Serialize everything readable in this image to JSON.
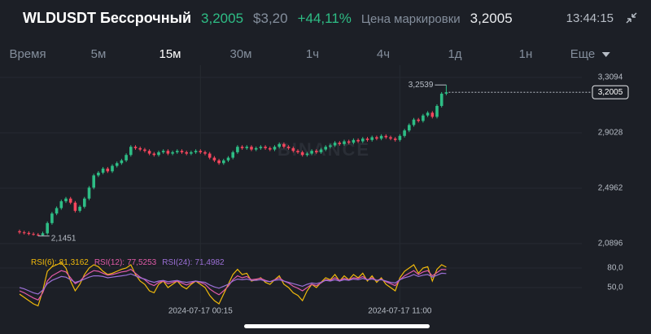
{
  "header": {
    "symbol": "WLDUSDT Бессрочный",
    "price": "3,2005",
    "usd_price": "$3,20",
    "change": "+44,11%",
    "mark_label": "Цена маркировки",
    "mark_price": "3,2005",
    "time": "13:44:15"
  },
  "tabs": [
    "Время",
    "5м",
    "15м",
    "30м",
    "1ч",
    "4ч",
    "1д",
    "1н",
    "Еще"
  ],
  "active_tab": 2,
  "chart_data": [
    {
      "type": "candlestick",
      "watermark": "BINANCE",
      "categories": [
        null,
        null,
        null,
        null,
        null,
        null,
        null,
        null,
        null,
        null,
        null,
        null,
        null,
        null,
        null,
        null,
        null,
        null,
        null,
        null,
        null,
        null,
        null,
        null,
        null,
        null,
        null,
        null,
        null,
        null,
        null,
        null,
        null,
        null,
        null,
        null,
        null,
        null,
        null,
        "2024-07-17 00:15",
        null,
        null,
        null,
        null,
        null,
        null,
        null,
        null,
        null,
        null,
        null,
        null,
        null,
        null,
        null,
        null,
        null,
        null,
        null,
        null,
        null,
        null,
        null,
        null,
        null,
        null,
        null,
        null,
        null,
        null,
        null,
        null,
        null,
        null,
        null,
        null,
        null,
        null,
        null,
        null,
        null,
        null,
        "2024-07-17 11:00",
        null,
        null,
        null,
        null,
        null,
        null,
        null,
        null,
        null,
        null
      ],
      "open": [
        2.18,
        2.172,
        2.168,
        2.16,
        2.155,
        2.15,
        2.165,
        2.24,
        2.31,
        2.35,
        2.4,
        2.42,
        2.39,
        2.33,
        2.36,
        2.42,
        2.5,
        2.59,
        2.61,
        2.64,
        2.62,
        2.66,
        2.68,
        2.7,
        2.74,
        2.8,
        2.79,
        2.78,
        2.77,
        2.75,
        2.74,
        2.76,
        2.77,
        2.75,
        2.76,
        2.77,
        2.76,
        2.75,
        2.76,
        2.77,
        2.76,
        2.75,
        2.72,
        2.7,
        2.68,
        2.7,
        2.72,
        2.76,
        2.8,
        2.79,
        2.8,
        2.78,
        2.79,
        2.8,
        2.79,
        2.78,
        2.8,
        2.82,
        2.8,
        2.79,
        2.77,
        2.76,
        2.74,
        2.75,
        2.77,
        2.76,
        2.78,
        2.8,
        2.81,
        2.83,
        2.82,
        2.84,
        2.83,
        2.85,
        2.84,
        2.86,
        2.85,
        2.87,
        2.86,
        2.88,
        2.87,
        2.86,
        2.85,
        2.88,
        2.92,
        2.96,
        3.0,
        2.99,
        3.03,
        3.05,
        3.02,
        3.1,
        3.19
      ],
      "high": [
        2.192,
        2.184,
        2.18,
        2.172,
        2.167,
        2.177,
        2.252,
        2.322,
        2.362,
        2.412,
        2.432,
        2.432,
        2.402,
        2.372,
        2.432,
        2.512,
        2.602,
        2.622,
        2.652,
        2.652,
        2.672,
        2.692,
        2.712,
        2.752,
        2.812,
        2.812,
        2.802,
        2.792,
        2.782,
        2.762,
        2.772,
        2.782,
        2.782,
        2.772,
        2.782,
        2.782,
        2.772,
        2.772,
        2.782,
        2.782,
        2.772,
        2.762,
        2.732,
        2.712,
        2.712,
        2.732,
        2.772,
        2.812,
        2.812,
        2.812,
        2.812,
        2.802,
        2.812,
        2.812,
        2.802,
        2.812,
        2.832,
        2.832,
        2.812,
        2.802,
        2.782,
        2.772,
        2.762,
        2.782,
        2.782,
        2.792,
        2.812,
        2.822,
        2.842,
        2.842,
        2.852,
        2.852,
        2.862,
        2.862,
        2.872,
        2.872,
        2.882,
        2.882,
        2.892,
        2.892,
        2.882,
        2.872,
        2.892,
        2.932,
        2.972,
        3.012,
        3.012,
        3.042,
        3.062,
        3.062,
        3.112,
        3.202,
        3.2539
      ],
      "low": [
        2.16,
        2.156,
        2.15,
        2.148,
        2.1451,
        2.147,
        2.153,
        2.228,
        2.298,
        2.338,
        2.388,
        2.378,
        2.318,
        2.318,
        2.348,
        2.408,
        2.488,
        2.578,
        2.598,
        2.608,
        2.608,
        2.648,
        2.668,
        2.688,
        2.728,
        2.778,
        2.768,
        2.758,
        2.738,
        2.728,
        2.728,
        2.748,
        2.738,
        2.738,
        2.748,
        2.748,
        2.738,
        2.738,
        2.748,
        2.748,
        2.738,
        2.708,
        2.688,
        2.668,
        2.668,
        2.688,
        2.708,
        2.748,
        2.778,
        2.778,
        2.768,
        2.768,
        2.778,
        2.778,
        2.768,
        2.768,
        2.788,
        2.788,
        2.778,
        2.758,
        2.748,
        2.728,
        2.728,
        2.738,
        2.748,
        2.748,
        2.768,
        2.788,
        2.798,
        2.808,
        2.808,
        2.818,
        2.818,
        2.828,
        2.828,
        2.838,
        2.838,
        2.848,
        2.848,
        2.858,
        2.848,
        2.838,
        2.838,
        2.868,
        2.908,
        2.948,
        2.978,
        2.978,
        3.018,
        3.008,
        3.008,
        3.088,
        3.178
      ],
      "close": [
        2.172,
        2.168,
        2.16,
        2.155,
        2.15,
        2.165,
        2.24,
        2.31,
        2.35,
        2.4,
        2.42,
        2.39,
        2.33,
        2.36,
        2.42,
        2.5,
        2.59,
        2.61,
        2.64,
        2.62,
        2.66,
        2.68,
        2.7,
        2.74,
        2.8,
        2.79,
        2.78,
        2.77,
        2.75,
        2.74,
        2.76,
        2.77,
        2.75,
        2.76,
        2.77,
        2.76,
        2.75,
        2.76,
        2.77,
        2.76,
        2.75,
        2.72,
        2.7,
        2.68,
        2.7,
        2.72,
        2.76,
        2.8,
        2.79,
        2.8,
        2.78,
        2.79,
        2.8,
        2.79,
        2.78,
        2.8,
        2.82,
        2.8,
        2.79,
        2.77,
        2.76,
        2.74,
        2.75,
        2.77,
        2.76,
        2.78,
        2.8,
        2.81,
        2.83,
        2.82,
        2.84,
        2.83,
        2.85,
        2.84,
        2.86,
        2.85,
        2.87,
        2.86,
        2.88,
        2.87,
        2.86,
        2.85,
        2.88,
        2.92,
        2.96,
        3.0,
        2.99,
        3.03,
        3.05,
        3.02,
        3.1,
        3.19,
        3.2005
      ],
      "up_color": "#2ebd85",
      "down_color": "#f6465d",
      "ylim": [
        2.0537,
        3.3513
      ],
      "yticks": [
        {
          "value": 2.0896,
          "label": "2,0896"
        },
        {
          "value": 2.4962,
          "label": "2,4962"
        },
        {
          "value": 2.9028,
          "label": "2,9028"
        },
        {
          "value": 3.3094,
          "label": "3,3094"
        }
      ],
      "last_price": {
        "value": 3.2005,
        "label": "3,2005"
      },
      "max_label": {
        "value": 3.2539,
        "label": "3,2539"
      },
      "min_label": {
        "value": 2.1451,
        "label": "2,1451"
      }
    },
    {
      "type": "line",
      "ylim": [
        18.75,
        93.75
      ],
      "yticks": [
        {
          "value": 50,
          "label": "50,0"
        },
        {
          "value": 80,
          "label": "80,0"
        }
      ],
      "series": [
        {
          "name": "RSI(6):",
          "last_label": "81,3162",
          "color": "#f0b90b",
          "values": [
            40,
            35,
            30,
            25,
            22,
            45,
            75,
            82,
            85,
            88,
            80,
            60,
            45,
            55,
            70,
            80,
            85,
            82,
            75,
            70,
            72,
            75,
            78,
            80,
            85,
            70,
            60,
            55,
            45,
            42,
            55,
            60,
            50,
            55,
            60,
            52,
            48,
            55,
            60,
            55,
            50,
            38,
            30,
            25,
            40,
            55,
            70,
            78,
            70,
            72,
            60,
            62,
            65,
            58,
            55,
            62,
            68,
            55,
            50,
            42,
            38,
            30,
            45,
            55,
            50,
            58,
            65,
            62,
            70,
            60,
            68,
            62,
            70,
            65,
            72,
            60,
            68,
            58,
            65,
            55,
            50,
            45,
            65,
            75,
            80,
            85,
            72,
            80,
            82,
            60,
            78,
            85,
            81.3162
          ]
        },
        {
          "name": "RSI(12):",
          "last_label": "77,5253",
          "color": "#e05aa8",
          "values": [
            45,
            42,
            38,
            34,
            31,
            42,
            60,
            68,
            72,
            76,
            74,
            65,
            56,
            60,
            67,
            72,
            76,
            75,
            72,
            69,
            70,
            72,
            74,
            75,
            78,
            72,
            66,
            62,
            56,
            53,
            58,
            60,
            56,
            58,
            60,
            57,
            54,
            57,
            60,
            58,
            55,
            48,
            43,
            39,
            45,
            52,
            62,
            68,
            65,
            67,
            62,
            63,
            64,
            61,
            59,
            62,
            65,
            60,
            57,
            52,
            49,
            45,
            50,
            55,
            53,
            57,
            62,
            61,
            65,
            61,
            64,
            62,
            65,
            64,
            67,
            62,
            65,
            61,
            63,
            59,
            56,
            53,
            62,
            68,
            72,
            76,
            70,
            74,
            76,
            68,
            73,
            78,
            77.5253
          ]
        },
        {
          "name": "RSI(24):",
          "last_label": "71,4982",
          "color": "#9b6fd6",
          "values": [
            50,
            48,
            45,
            42,
            40,
            46,
            56,
            61,
            64,
            67,
            66,
            62,
            58,
            60,
            63,
            66,
            68,
            68,
            67,
            65,
            66,
            67,
            68,
            69,
            71,
            68,
            65,
            63,
            60,
            58,
            60,
            61,
            59,
            60,
            61,
            59,
            58,
            59,
            60,
            59,
            58,
            54,
            51,
            49,
            52,
            55,
            60,
            63,
            62,
            63,
            61,
            61,
            62,
            60,
            59,
            61,
            62,
            60,
            58,
            56,
            54,
            52,
            55,
            57,
            56,
            58,
            61,
            60,
            62,
            60,
            62,
            61,
            63,
            62,
            64,
            62,
            63,
            61,
            62,
            60,
            58,
            57,
            62,
            65,
            67,
            70,
            67,
            69,
            70,
            66,
            69,
            72,
            71.4982
          ]
        }
      ]
    }
  ]
}
